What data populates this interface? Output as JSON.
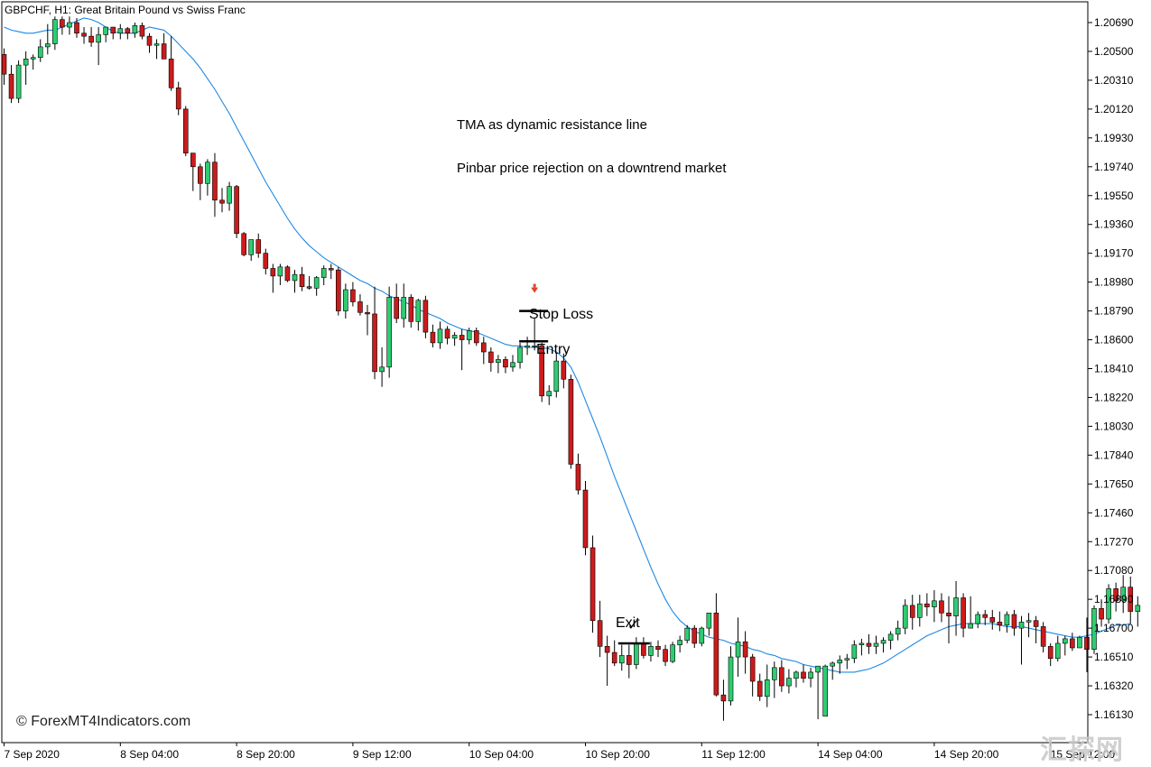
{
  "window": {
    "title": "GBPCHF, H1:  Great Britain Pound vs Swiss Franc"
  },
  "annotations": {
    "note_1": "TMA as dynamic resistance line",
    "note_2": "Pinbar price rejection on a downtrend market",
    "stop_loss": "Stop Loss",
    "entry": "Entry",
    "exit": "Exit",
    "check_mark": "✓",
    "watermark": "© ForexMT4Indicators.com",
    "corner_logo": "汇探网"
  },
  "colors": {
    "bull": "#2ecc71",
    "bear": "#cc1b1b",
    "wick": "#000000",
    "tma_line": "#1e88e5",
    "arrow": "#e0452a",
    "axis": "#000000",
    "background": "#ffffff"
  },
  "chart_data": {
    "type": "candlestick",
    "symbol": "GBPCHF",
    "timeframe": "H1",
    "y_ticks": [
      1.2069,
      1.205,
      1.2031,
      1.2012,
      1.1993,
      1.1974,
      1.1955,
      1.1936,
      1.1917,
      1.1898,
      1.1879,
      1.186,
      1.1841,
      1.1822,
      1.1803,
      1.1784,
      1.1765,
      1.1746,
      1.1727,
      1.1708,
      1.1689,
      1.167,
      1.1651,
      1.1632,
      1.1613
    ],
    "y_tick_labels": [
      "1.20690",
      "1.20500",
      "1.20310",
      "1.20120",
      "1.19930",
      "1.19740",
      "1.19550",
      "1.19360",
      "1.19170",
      "1.18980",
      "1.18790",
      "1.18600",
      "1.18410",
      "1.18220",
      "1.18030",
      "1.17840",
      "1.17650",
      "1.17460",
      "1.17270",
      "1.17080",
      "1.16890",
      "1.16700",
      "1.16510",
      "1.16320",
      "1.16130"
    ],
    "ylim": [
      1.16,
      1.2078
    ],
    "x_labels": [
      "7 Sep 2020",
      "8 Sep 04:00",
      "8 Sep 20:00",
      "9 Sep 12:00",
      "10 Sep 04:00",
      "10 Sep 20:00",
      "11 Sep 12:00",
      "14 Sep 04:00",
      "14 Sep 20:00",
      "15 Sep 12:00"
    ],
    "x_label_bar_index": [
      0,
      16,
      32,
      48,
      64,
      80,
      96,
      112,
      128,
      144
    ],
    "bars": [
      [
        1.2048,
        1.2052,
        1.2028,
        1.2035
      ],
      [
        1.2035,
        1.2041,
        1.2016,
        1.2019
      ],
      [
        1.2019,
        1.2044,
        1.2016,
        1.2041
      ],
      [
        1.2041,
        1.205,
        1.2028,
        1.2045
      ],
      [
        1.2045,
        1.2048,
        1.2038,
        1.2046
      ],
      [
        1.2046,
        1.2058,
        1.2043,
        1.2053
      ],
      [
        1.2053,
        1.2068,
        1.2048,
        1.2055
      ],
      [
        1.2055,
        1.2073,
        1.2051,
        1.2071
      ],
      [
        1.2071,
        1.2073,
        1.2061,
        1.2066
      ],
      [
        1.2066,
        1.2073,
        1.2061,
        1.2069
      ],
      [
        1.2069,
        1.2072,
        1.2059,
        1.2062
      ],
      [
        1.2062,
        1.2066,
        1.2055,
        1.206
      ],
      [
        1.206,
        1.2066,
        1.2053,
        1.2056
      ],
      [
        1.2056,
        1.2066,
        1.2041,
        1.2061
      ],
      [
        1.2061,
        1.2066,
        1.2056,
        1.2066
      ],
      [
        1.2066,
        1.2066,
        1.2058,
        1.2062
      ],
      [
        1.2062,
        1.2068,
        1.2058,
        1.2065
      ],
      [
        1.2065,
        1.2066,
        1.2058,
        1.2062
      ],
      [
        1.2062,
        1.2069,
        1.2059,
        1.2067
      ],
      [
        1.2067,
        1.2069,
        1.2058,
        1.206
      ],
      [
        1.206,
        1.2062,
        1.2049,
        1.2054
      ],
      [
        1.2054,
        1.2058,
        1.2045,
        1.2055
      ],
      [
        1.2055,
        1.2062,
        1.2045,
        1.2045
      ],
      [
        1.2045,
        1.206,
        1.2024,
        1.2026
      ],
      [
        1.2026,
        1.203,
        1.2008,
        1.2012
      ],
      [
        1.2012,
        1.2014,
        1.1981,
        1.1983
      ],
      [
        1.1983,
        1.1983,
        1.1958,
        1.1974
      ],
      [
        1.1974,
        1.1976,
        1.1952,
        1.1963
      ],
      [
        1.1963,
        1.1979,
        1.1955,
        1.1977
      ],
      [
        1.1977,
        1.1983,
        1.1941,
        1.1952
      ],
      [
        1.1952,
        1.196,
        1.1944,
        1.195
      ],
      [
        1.195,
        1.1964,
        1.1945,
        1.1961
      ],
      [
        1.1961,
        1.1962,
        1.1927,
        1.193
      ],
      [
        1.193,
        1.1931,
        1.1915,
        1.1916
      ],
      [
        1.1916,
        1.1926,
        1.1912,
        1.1926
      ],
      [
        1.1926,
        1.193,
        1.1914,
        1.1917
      ],
      [
        1.1917,
        1.192,
        1.1903,
        1.1907
      ],
      [
        1.1907,
        1.191,
        1.1891,
        1.1902
      ],
      [
        1.1902,
        1.191,
        1.1896,
        1.1908
      ],
      [
        1.1908,
        1.1909,
        1.1898,
        1.1899
      ],
      [
        1.1899,
        1.1906,
        1.1891,
        1.1903
      ],
      [
        1.1903,
        1.1908,
        1.1892,
        1.1895
      ],
      [
        1.1895,
        1.1902,
        1.1893,
        1.1894
      ],
      [
        1.1894,
        1.1902,
        1.1889,
        1.1901
      ],
      [
        1.1901,
        1.1909,
        1.1896,
        1.1907
      ],
      [
        1.1907,
        1.191,
        1.19,
        1.1906
      ],
      [
        1.1906,
        1.1908,
        1.1876,
        1.1879
      ],
      [
        1.1879,
        1.1897,
        1.1874,
        1.1893
      ],
      [
        1.1893,
        1.1898,
        1.1882,
        1.1885
      ],
      [
        1.1885,
        1.189,
        1.1876,
        1.1878
      ],
      [
        1.1878,
        1.1883,
        1.1863,
        1.1877
      ],
      [
        1.1877,
        1.1895,
        1.1834,
        1.1839
      ],
      [
        1.1839,
        1.1855,
        1.1829,
        1.1842
      ],
      [
        1.1842,
        1.1895,
        1.1835,
        1.1888
      ],
      [
        1.1888,
        1.1897,
        1.1871,
        1.1874
      ],
      [
        1.1874,
        1.1897,
        1.1868,
        1.1888
      ],
      [
        1.1888,
        1.189,
        1.1868,
        1.1872
      ],
      [
        1.1872,
        1.1887,
        1.1866,
        1.1886
      ],
      [
        1.1886,
        1.1889,
        1.1861,
        1.1865
      ],
      [
        1.1865,
        1.187,
        1.1855,
        1.1858
      ],
      [
        1.1858,
        1.1872,
        1.1854,
        1.1867
      ],
      [
        1.1867,
        1.1869,
        1.1857,
        1.1861
      ],
      [
        1.1861,
        1.1865,
        1.1856,
        1.1863
      ],
      [
        1.1863,
        1.1867,
        1.184,
        1.186
      ],
      [
        1.186,
        1.1868,
        1.1857,
        1.1866
      ],
      [
        1.1866,
        1.1868,
        1.1856,
        1.1858
      ],
      [
        1.1858,
        1.1862,
        1.1844,
        1.1852
      ],
      [
        1.1852,
        1.1855,
        1.1839,
        1.1845
      ],
      [
        1.1845,
        1.185,
        1.1838,
        1.1847
      ],
      [
        1.1847,
        1.1849,
        1.1838,
        1.1842
      ],
      [
        1.1842,
        1.185,
        1.1839,
        1.1845
      ],
      [
        1.1845,
        1.1858,
        1.1841,
        1.1855
      ],
      [
        1.1855,
        1.1862,
        1.185,
        1.1856
      ],
      [
        1.1856,
        1.1874,
        1.1853,
        1.1856
      ],
      [
        1.1856,
        1.1858,
        1.1819,
        1.1823
      ],
      [
        1.1823,
        1.183,
        1.1817,
        1.1826
      ],
      [
        1.1826,
        1.1851,
        1.1822,
        1.1846
      ],
      [
        1.1846,
        1.1851,
        1.1828,
        1.1834
      ],
      [
        1.1834,
        1.1837,
        1.1775,
        1.1778
      ],
      [
        1.1778,
        1.1785,
        1.1758,
        1.1761
      ],
      [
        1.1761,
        1.1767,
        1.1718,
        1.1723
      ],
      [
        1.1723,
        1.1731,
        1.1667,
        1.1675
      ],
      [
        1.1675,
        1.1688,
        1.1651,
        1.1658
      ],
      [
        1.1658,
        1.1665,
        1.1632,
        1.1654
      ],
      [
        1.1654,
        1.1662,
        1.1645,
        1.1647
      ],
      [
        1.1647,
        1.1659,
        1.1642,
        1.1652
      ],
      [
        1.1652,
        1.1659,
        1.1637,
        1.1646
      ],
      [
        1.1646,
        1.1664,
        1.1643,
        1.166
      ],
      [
        1.166,
        1.1664,
        1.165,
        1.1652
      ],
      [
        1.1652,
        1.1661,
        1.1648,
        1.1658
      ],
      [
        1.1658,
        1.1662,
        1.1651,
        1.1656
      ],
      [
        1.1656,
        1.1659,
        1.1645,
        1.1648
      ],
      [
        1.1648,
        1.1661,
        1.1647,
        1.1659
      ],
      [
        1.1659,
        1.1665,
        1.1654,
        1.1662
      ],
      [
        1.1662,
        1.1672,
        1.166,
        1.167
      ],
      [
        1.167,
        1.1672,
        1.1657,
        1.166
      ],
      [
        1.166,
        1.1671,
        1.1658,
        1.167
      ],
      [
        1.167,
        1.168,
        1.1665,
        1.168
      ],
      [
        1.168,
        1.1693,
        1.1625,
        1.1626
      ],
      [
        1.1626,
        1.1636,
        1.1609,
        1.1622
      ],
      [
        1.1622,
        1.1658,
        1.1619,
        1.1651
      ],
      [
        1.1651,
        1.1677,
        1.1638,
        1.1661
      ],
      [
        1.1661,
        1.1668,
        1.164,
        1.1651
      ],
      [
        1.1651,
        1.1653,
        1.1625,
        1.1635
      ],
      [
        1.1635,
        1.164,
        1.1622,
        1.1625
      ],
      [
        1.1625,
        1.1646,
        1.1618,
        1.1636
      ],
      [
        1.1636,
        1.1648,
        1.1624,
        1.1644
      ],
      [
        1.1644,
        1.1649,
        1.1628,
        1.1632
      ],
      [
        1.1632,
        1.1643,
        1.1627,
        1.1637
      ],
      [
        1.1637,
        1.1642,
        1.1631,
        1.1641
      ],
      [
        1.1641,
        1.1646,
        1.1634,
        1.1637
      ],
      [
        1.1637,
        1.1644,
        1.1631,
        1.1641
      ],
      [
        1.1641,
        1.1643,
        1.161,
        1.1645
      ],
      [
        1.1612,
        1.1646,
        1.1612,
        1.1645
      ],
      [
        1.1645,
        1.1648,
        1.1636,
        1.1647
      ],
      [
        1.1647,
        1.1652,
        1.164,
        1.1649
      ],
      [
        1.1649,
        1.1653,
        1.1643,
        1.165
      ],
      [
        1.165,
        1.1662,
        1.1647,
        1.1659
      ],
      [
        1.1659,
        1.1663,
        1.1652,
        1.166
      ],
      [
        1.166,
        1.1666,
        1.1653,
        1.1658
      ],
      [
        1.1658,
        1.1665,
        1.1653,
        1.166
      ],
      [
        1.166,
        1.1664,
        1.1654,
        1.1662
      ],
      [
        1.1662,
        1.1668,
        1.1656,
        1.1666
      ],
      [
        1.1666,
        1.1675,
        1.1662,
        1.167
      ],
      [
        1.167,
        1.1689,
        1.1666,
        1.1685
      ],
      [
        1.1685,
        1.1692,
        1.1669,
        1.1677
      ],
      [
        1.1677,
        1.1692,
        1.1671,
        1.1686
      ],
      [
        1.1686,
        1.1693,
        1.1678,
        1.1684
      ],
      [
        1.1684,
        1.1695,
        1.1674,
        1.1688
      ],
      [
        1.1688,
        1.1693,
        1.1674,
        1.168
      ],
      [
        1.168,
        1.1691,
        1.166,
        1.1678
      ],
      [
        1.1678,
        1.1701,
        1.1665,
        1.169
      ],
      [
        1.169,
        1.1693,
        1.1664,
        1.167
      ],
      [
        1.167,
        1.1691,
        1.1671,
        1.1673
      ],
      [
        1.1673,
        1.1681,
        1.167,
        1.1679
      ],
      [
        1.1679,
        1.1682,
        1.1672,
        1.1677
      ],
      [
        1.1677,
        1.1682,
        1.1669,
        1.1674
      ],
      [
        1.1674,
        1.1681,
        1.1668,
        1.1672
      ],
      [
        1.1672,
        1.1681,
        1.1667,
        1.1679
      ],
      [
        1.1679,
        1.1682,
        1.1665,
        1.167
      ],
      [
        1.167,
        1.1678,
        1.1646,
        1.1674
      ],
      [
        1.1674,
        1.168,
        1.1664,
        1.1675
      ],
      [
        1.1675,
        1.1678,
        1.166,
        1.1671
      ],
      [
        1.1671,
        1.1674,
        1.1654,
        1.1658
      ],
      [
        1.1658,
        1.166,
        1.1645,
        1.165
      ],
      [
        1.165,
        1.1665,
        1.1648,
        1.166
      ],
      [
        1.166,
        1.1665,
        1.1652,
        1.1663
      ],
      [
        1.1663,
        1.1667,
        1.1655,
        1.1657
      ],
      [
        1.1657,
        1.1665,
        1.1657,
        1.1664
      ],
      [
        1.1664,
        1.1677,
        1.1641,
        1.1656
      ],
      [
        1.1656,
        1.1685,
        1.1653,
        1.1683
      ],
      [
        1.1683,
        1.1689,
        1.1671,
        1.1676
      ],
      [
        1.1676,
        1.1699,
        1.1673,
        1.1696
      ],
      [
        1.1696,
        1.17,
        1.1681,
        1.1688
      ],
      [
        1.1688,
        1.1705,
        1.168,
        1.1697
      ],
      [
        1.1697,
        1.1704,
        1.1673,
        1.1681
      ],
      [
        1.1681,
        1.1691,
        1.1671,
        1.1685
      ]
    ],
    "tma": [
      1.2066,
      1.2064,
      1.2063,
      1.2062,
      1.2062,
      1.2063,
      1.2064,
      1.2064,
      1.2066,
      1.2068,
      1.207,
      1.2072,
      1.2071,
      1.2069,
      1.2066,
      1.2063,
      1.2062,
      1.2062,
      1.2062,
      1.2064,
      1.2066,
      1.2065,
      1.2064,
      1.206,
      1.2055,
      1.205,
      1.2045,
      1.2039,
      1.2032,
      1.2025,
      1.2017,
      1.2009,
      1.2,
      1.1991,
      1.1982,
      1.1973,
      1.1964,
      1.1956,
      1.1948,
      1.194,
      1.1933,
      1.1927,
      1.1922,
      1.1918,
      1.1914,
      1.1911,
      1.1908,
      1.1905,
      1.1902,
      1.1899,
      1.1897,
      1.1894,
      1.1892,
      1.1889,
      1.1887,
      1.1885,
      1.1883,
      1.188,
      1.1878,
      1.1876,
      1.1874,
      1.1871,
      1.1869,
      1.1867,
      1.1866,
      1.1865,
      1.1863,
      1.1861,
      1.1859,
      1.1857,
      1.1856,
      1.1856,
      1.1855,
      1.1855,
      1.1855,
      1.1854,
      1.1852,
      1.1848,
      1.1842,
      1.1832,
      1.182,
      1.1808,
      1.1796,
      1.1783,
      1.177,
      1.1758,
      1.1746,
      1.1734,
      1.1722,
      1.171,
      1.1699,
      1.1689,
      1.1681,
      1.1675,
      1.1671,
      1.1668,
      1.1666,
      1.1664,
      1.1663,
      1.1662,
      1.166,
      1.1659,
      1.1658,
      1.1656,
      1.1655,
      1.1653,
      1.1652,
      1.165,
      1.1649,
      1.1648,
      1.1646,
      1.1645,
      1.1644,
      1.1643,
      1.1642,
      1.1641,
      1.1641,
      1.1641,
      1.1642,
      1.1643,
      1.1645,
      1.1647,
      1.165,
      1.1653,
      1.1656,
      1.1659,
      1.1662,
      1.1665,
      1.1667,
      1.1669,
      1.1671,
      1.1672,
      1.1673,
      1.1673,
      1.1673,
      1.1673,
      1.1673,
      1.1672,
      1.1671,
      1.1671,
      1.1671,
      1.167,
      1.1669,
      1.1668,
      1.1667,
      1.1666,
      1.1665,
      1.1664,
      1.1664,
      1.1665,
      1.1666,
      1.1668,
      1.167,
      1.1672,
      1.1672,
      1.1673
    ],
    "stop_loss_level": 1.1879,
    "entry_level": 1.1859,
    "exit_level": 1.166,
    "pinbar_index": 73,
    "exit_index": 86
  }
}
